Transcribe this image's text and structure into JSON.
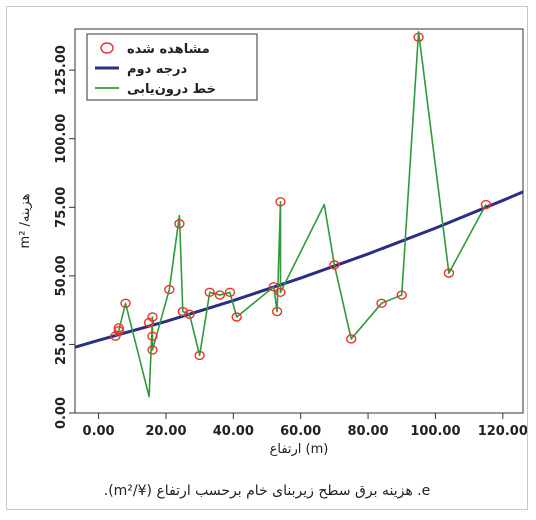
{
  "caption": "e. هزینه برق سطح زیربنای خام برحسب ارتفاع (¥/m²).",
  "chart_data": {
    "type": "scatter",
    "xlabel": "ارتفاع (m)",
    "ylabel": "m² /هزینه",
    "xlim": [
      -7,
      126
    ],
    "ylim": [
      0,
      140
    ],
    "x_ticks": [
      "0.00",
      "20.00",
      "40.00",
      "60.00",
      "80.00",
      "100.00",
      "120.00"
    ],
    "y_ticks": [
      "0.00",
      "25.00",
      "50.00",
      "75.00",
      "100.00",
      "125.00"
    ],
    "grid": false,
    "legend_position": "top-left",
    "legend": [
      {
        "label": "مشاهده شده",
        "kind": "circle",
        "color": "#e8342a"
      },
      {
        "label": "درجه دوم",
        "kind": "line",
        "color": "#2c2e84"
      },
      {
        "label": "خط درون‌یابی",
        "kind": "line",
        "color": "#2f9a3c"
      }
    ],
    "observed": {
      "x": [
        5,
        6,
        6,
        8,
        15,
        16,
        16,
        16,
        21,
        24,
        25,
        27,
        30,
        33,
        36,
        39,
        41,
        52,
        53,
        54,
        54,
        70,
        75,
        84,
        90,
        95,
        104,
        115
      ],
      "y": [
        28,
        31,
        30,
        40,
        33,
        35,
        28,
        23,
        45,
        69,
        37,
        36,
        21,
        44,
        43,
        44,
        35,
        46,
        37,
        77,
        44,
        54,
        27,
        40,
        43,
        137,
        51,
        76
      ]
    },
    "quadratic": {
      "x": [
        -7,
        0,
        20,
        40,
        60,
        80,
        100,
        120,
        126
      ],
      "y": [
        24.0,
        26.5,
        33.4,
        41.0,
        49.2,
        58.0,
        67.4,
        77.5,
        80.6
      ]
    },
    "interpolation": {
      "x": [
        5,
        6,
        8,
        15,
        16,
        16,
        16,
        21,
        24,
        25,
        27,
        30,
        33,
        36,
        39,
        41,
        52,
        53,
        54,
        54,
        67,
        70,
        75,
        84,
        90,
        95,
        104,
        115
      ],
      "y": [
        28,
        30,
        40,
        6,
        35,
        28,
        23,
        45,
        72,
        37,
        36,
        21,
        44,
        43,
        44,
        35,
        46,
        37,
        77,
        44,
        76,
        54,
        27,
        40,
        43,
        139,
        51,
        76
      ]
    }
  }
}
